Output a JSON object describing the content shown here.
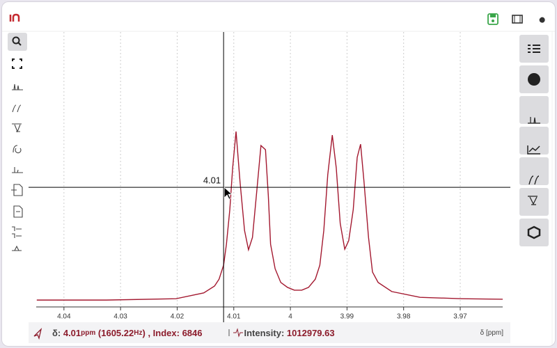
{
  "chart_data": {
    "type": "line",
    "x": [
      4.0448,
      4.0325,
      4.0202,
      4.0153,
      4.0134,
      4.0126,
      4.0118,
      4.0113,
      4.0107,
      4.0102,
      4.0096,
      4.0089,
      4.0081,
      4.0074,
      4.0067,
      4.0059,
      4.0052,
      4.0044,
      4.0039,
      4.0035,
      4.0027,
      4.0017,
      4.0005,
      3.9993,
      3.998,
      3.9968,
      3.9956,
      3.9948,
      3.9941,
      3.9934,
      3.9926,
      3.9919,
      3.9912,
      3.9904,
      3.9897,
      3.9889,
      3.9882,
      3.9876,
      3.987,
      3.9862,
      3.9855,
      3.9845,
      3.9821,
      3.9771,
      3.9698,
      3.9625
    ],
    "values": [
      2.5,
      2.5,
      3.0,
      5.1,
      7.6,
      10.1,
      15.2,
      22.8,
      35.4,
      50.6,
      63.8,
      45.6,
      27.8,
      20.8,
      25.3,
      43.0,
      58.7,
      57.2,
      40.5,
      22.8,
      13.9,
      8.9,
      7.1,
      6.1,
      6.1,
      7.1,
      10.1,
      15.2,
      27.8,
      48.1,
      62.5,
      50.6,
      30.4,
      21.0,
      24.1,
      35.4,
      54.4,
      59.2,
      45.6,
      25.3,
      12.7,
      8.9,
      5.6,
      3.5,
      3.0,
      2.8
    ],
    "color": "#a3182f",
    "xlim": [
      4.0449,
      3.9625
    ],
    "ylim": [
      0,
      100
    ],
    "xticks": [
      4.04,
      4.03,
      4.02,
      4.01,
      4,
      3.99,
      3.98,
      3.97
    ],
    "xlabel": "δ [ppm]",
    "grid": true,
    "crosshair_x": {
      "value": 4.0118,
      "label": "4.01"
    },
    "crosshair_y": 43.5
  },
  "status": {
    "shift_label": "δ:",
    "shift_value": 4.01,
    "shift_unit": "ppm",
    "hz_open": "(",
    "hz_value": 1605.22,
    "hz_unit": "Hz",
    "hz_close": ")",
    "index_label": ", Index:",
    "index_value": 6846,
    "intensity_label": "Intensity:",
    "intensity_value": 1012979.63
  }
}
